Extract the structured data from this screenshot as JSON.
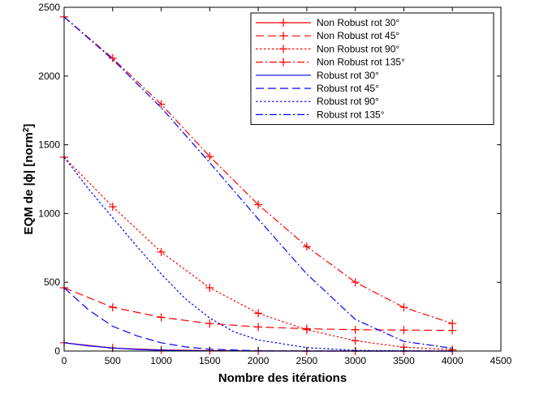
{
  "chart_data": {
    "type": "line",
    "title": "",
    "xlabel": "Nombre des itérations",
    "ylabel": "EQM de |ϕ| [norm²]",
    "ylabel_main": "EQM de |ϕ| [norm",
    "ylabel_sup": "2",
    "ylabel_end": "]",
    "xlim": [
      0,
      4500
    ],
    "ylim": [
      0,
      2500
    ],
    "xticks": [
      0,
      500,
      1000,
      1500,
      2000,
      2500,
      3000,
      3500,
      4000,
      4500
    ],
    "yticks": [
      0,
      500,
      1000,
      1500,
      2000,
      2500
    ],
    "grid": false,
    "legend_position": "top-right",
    "series": [
      {
        "name": "Non Robust rot 30°",
        "color": "#ff0000",
        "dash": "solid",
        "marker": "+",
        "x": [
          0,
          500,
          1000,
          1500,
          2000,
          2500,
          3000,
          3500,
          4000
        ],
        "y": [
          60,
          22,
          8,
          3,
          1,
          0,
          0,
          0,
          0
        ]
      },
      {
        "name": "Non Robust rot 45°",
        "color": "#ff0000",
        "dash": "dashed",
        "marker": "+",
        "x": [
          0,
          500,
          1000,
          1500,
          2000,
          2500,
          3000,
          3500,
          4000
        ],
        "y": [
          460,
          318,
          245,
          200,
          175,
          162,
          155,
          152,
          150
        ]
      },
      {
        "name": "Non Robust rot 90°",
        "color": "#ff0000",
        "dash": "dotted",
        "marker": "+",
        "x": [
          0,
          500,
          1000,
          1500,
          2000,
          2500,
          3000,
          3500,
          4000
        ],
        "y": [
          1410,
          1050,
          720,
          460,
          275,
          155,
          75,
          28,
          10
        ]
      },
      {
        "name": "Non Robust rot 135°",
        "color": "#ff0000",
        "dash": "dashdot",
        "marker": "+",
        "x": [
          0,
          500,
          1000,
          1500,
          2000,
          2500,
          3000,
          3500,
          4000
        ],
        "y": [
          2430,
          2130,
          1795,
          1415,
          1065,
          760,
          500,
          318,
          200
        ]
      },
      {
        "name": "Robust rot 30°",
        "color": "#0000ff",
        "dash": "solid",
        "marker": "none",
        "x": [
          0,
          250,
          500,
          750,
          1000,
          1250,
          1500,
          2000,
          2500,
          3000,
          3500,
          4000
        ],
        "y": [
          60,
          38,
          22,
          12,
          6,
          3,
          1,
          0,
          0,
          0,
          0,
          0
        ]
      },
      {
        "name": "Robust rot 45°",
        "color": "#0000ff",
        "dash": "dashed",
        "marker": "none",
        "x": [
          0,
          250,
          500,
          750,
          1000,
          1250,
          1500,
          2000,
          2500,
          3000,
          3500,
          4000
        ],
        "y": [
          460,
          300,
          180,
          110,
          60,
          30,
          13,
          2,
          0,
          0,
          0,
          0
        ]
      },
      {
        "name": "Robust rot 90°",
        "color": "#0000ff",
        "dash": "dotted",
        "marker": "none",
        "x": [
          0,
          250,
          500,
          750,
          1000,
          1250,
          1500,
          1750,
          2000,
          2500,
          3000,
          3500,
          4000
        ],
        "y": [
          1410,
          1180,
          970,
          760,
          560,
          380,
          240,
          140,
          80,
          25,
          5,
          1,
          0
        ]
      },
      {
        "name": "Robust rot 135°",
        "color": "#0000ff",
        "dash": "dashdot",
        "marker": "none",
        "x": [
          0,
          500,
          1000,
          1500,
          2000,
          2500,
          3000,
          3500,
          4000
        ],
        "y": [
          2430,
          2120,
          1770,
          1370,
          960,
          560,
          230,
          70,
          20
        ]
      }
    ]
  }
}
